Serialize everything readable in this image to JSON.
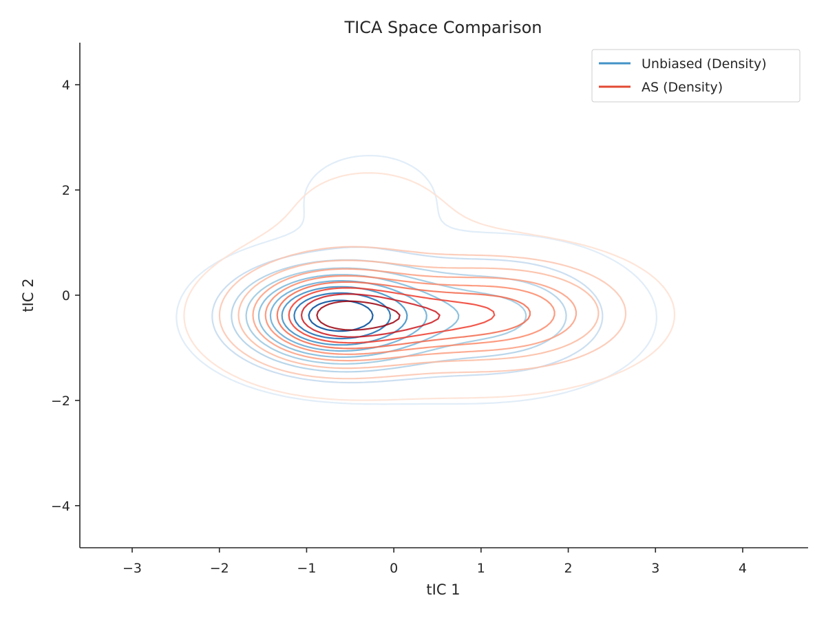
{
  "chart_data": {
    "type": "contour",
    "title": "TICA Space Comparison",
    "xlabel": "tIC 1",
    "ylabel": "tIC 2",
    "xlim": [
      -3.6,
      4.75
    ],
    "ylim": [
      -4.8,
      4.8
    ],
    "xticks": [
      -3,
      -2,
      -1,
      0,
      1,
      2,
      3,
      4
    ],
    "yticks": [
      -4,
      -2,
      0,
      2,
      4
    ],
    "xtick_labels": [
      "−3",
      "−2",
      "−1",
      "0",
      "1",
      "2",
      "3",
      "4"
    ],
    "ytick_labels": [
      "−4",
      "−2",
      "0",
      "2",
      "4"
    ],
    "grid": false,
    "legend_position": "top-right",
    "series": [
      {
        "name": "Unbiased (Density)",
        "legend_color": "#4292c6",
        "colormap": "Blues",
        "level_colors": [
          "#deebf7",
          "#c6dbef",
          "#b1d2e8",
          "#9ecae1",
          "#82bbdb",
          "#6baed6",
          "#4292c6",
          "#2171b5",
          "#08519c"
        ],
        "components": [
          {
            "mx": -0.68,
            "my": -0.38,
            "sx": 0.72,
            "sy": 0.62,
            "w": 1.0
          },
          {
            "mx": 1.25,
            "my": -0.35,
            "sx": 0.85,
            "sy": 0.75,
            "w": 0.35
          },
          {
            "mx": -0.28,
            "my": 1.85,
            "sx": 0.5,
            "sy": 0.55,
            "w": 0.16
          },
          {
            "mx": 0.3,
            "my": -0.7,
            "sx": 1.4,
            "sy": 0.9,
            "w": 0.1
          }
        ]
      },
      {
        "name": "AS (Density)",
        "legend_color": "#e34a33",
        "colormap": "Reds",
        "level_colors": [
          "#fee0d2",
          "#fcc5b0",
          "#fcbba1",
          "#fc9f81",
          "#fb8a6a",
          "#f26a4d",
          "#ef3b2c",
          "#cb181d",
          "#99000d"
        ],
        "components": [
          {
            "mx": -0.7,
            "my": -0.38,
            "sx": 0.68,
            "sy": 0.6,
            "w": 1.0
          },
          {
            "mx": 1.3,
            "my": -0.33,
            "sx": 0.8,
            "sy": 0.6,
            "w": 0.62
          },
          {
            "mx": 0.3,
            "my": -0.45,
            "sx": 0.6,
            "sy": 0.45,
            "w": 0.3
          },
          {
            "mx": -0.3,
            "my": 1.6,
            "sx": 0.9,
            "sy": 0.9,
            "w": 0.08
          },
          {
            "mx": 0.6,
            "my": -0.55,
            "sx": 1.6,
            "sy": 1.1,
            "w": 0.1
          }
        ]
      }
    ]
  }
}
